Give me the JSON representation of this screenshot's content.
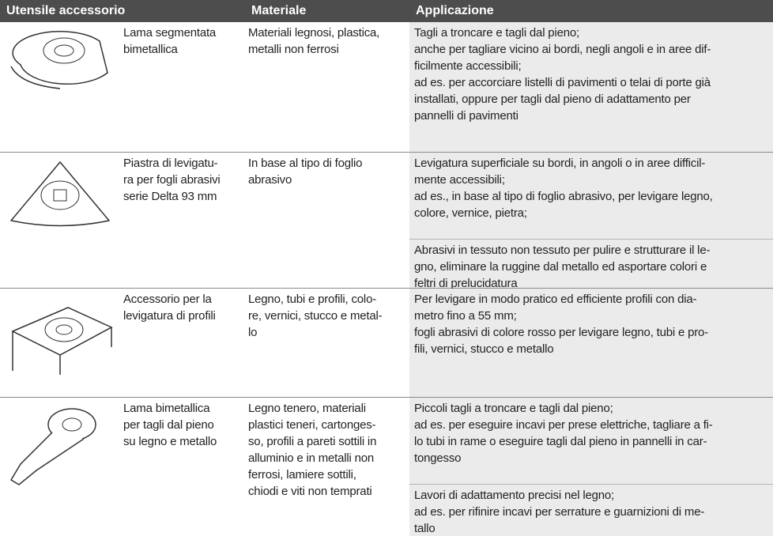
{
  "header": {
    "col1": "Utensile accessorio",
    "col2": "Materiale",
    "col3": "Applicazione"
  },
  "rows": [
    {
      "name": [
        "Lama segmentata",
        "bimetallica"
      ],
      "material": [
        "Materiali legnosi, plastica,",
        "metalli non ferrosi"
      ],
      "application": [
        [
          "Tagli a troncare e tagli dal pieno;",
          "anche per tagliare vicino ai bordi, negli angoli e in aree dif-",
          "ficilmente accessibili;",
          "ad es. per accorciare listelli di pavimenti o telai di porte già",
          "installati, oppure per tagli dal pieno di adattamento per",
          "pannelli di pavimenti"
        ]
      ]
    },
    {
      "name": [
        "Piastra di levigatu-",
        "ra per fogli abrasivi",
        "serie Delta 93 mm"
      ],
      "material": [
        "In base al tipo di foglio",
        "abrasivo"
      ],
      "application": [
        [
          "Levigatura superficiale su bordi, in angoli o in aree difficil-",
          "mente accessibili;",
          "ad es., in base al tipo di foglio abrasivo, per levigare legno,",
          "colore, vernice, pietra;"
        ],
        [
          "Abrasivi in tessuto non tessuto per pulire e strutturare il le-",
          "gno, eliminare la ruggine dal metallo ed asportare colori e",
          "feltri di prelucidatura"
        ]
      ]
    },
    {
      "name": [
        "Accessorio per la",
        "levigatura di profili"
      ],
      "material": [
        "Legno, tubi e profili, colo-",
        "re, vernici, stucco e metal-",
        "lo"
      ],
      "application": [
        [
          "Per levigare in modo pratico ed efficiente profili con dia-",
          "metro fino a 55 mm;",
          "fogli abrasivi di colore rosso per levigare legno, tubi e pro-",
          "fili, vernici, stucco e metallo"
        ]
      ]
    },
    {
      "name": [
        "Lama bimetallica",
        "per tagli dal pieno",
        "su legno e metallo"
      ],
      "material": [
        "Legno tenero, materiali",
        "plastici teneri, cartonges-",
        "so, profili a pareti sottili in",
        "alluminio e in metalli non",
        "ferrosi, lamiere sottili,",
        "chiodi e viti non temprati"
      ],
      "application": [
        [
          "Piccoli tagli a troncare e tagli dal pieno;",
          "ad es. per eseguire incavi per prese elettriche, tagliare a fi-",
          "lo tubi in rame o eseguire tagli dal pieno in pannelli in car-",
          "tongesso"
        ],
        [
          "Lavori di adattamento precisi nel legno;",
          "ad es. per rifinire incavi per serrature e guarnizioni di me-",
          "tallo"
        ]
      ]
    }
  ]
}
